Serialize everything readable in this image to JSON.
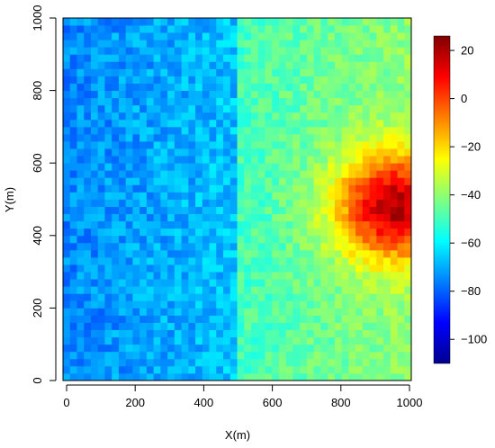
{
  "chart_data": {
    "type": "heatmap",
    "xlabel": "X(m)",
    "ylabel": "Y(m)",
    "xlim": [
      0,
      1000
    ],
    "ylim": [
      0,
      1000
    ],
    "x_ticks": [
      "0",
      "200",
      "400",
      "600",
      "800",
      "1000"
    ],
    "y_ticks": [
      "0",
      "200",
      "400",
      "600",
      "800",
      "1000"
    ],
    "grid_cells": [
      50,
      50
    ],
    "value_range": [
      -110,
      26
    ],
    "colorbar": {
      "ticks": [
        "20",
        "0",
        "−20",
        "−40",
        "−60",
        "−80",
        "−100"
      ],
      "tick_values": [
        20,
        0,
        -20,
        -40,
        -60,
        -80,
        -100
      ],
      "colors": [
        "#00008f",
        "#0000ff",
        "#0080ff",
        "#00ffff",
        "#80ff80",
        "#ffff00",
        "#ff8000",
        "#ff0000",
        "#800000"
      ]
    },
    "regions": [
      {
        "x_range": [
          0,
          500
        ],
        "y_range": [
          0,
          1000
        ],
        "mean_value": -75
      },
      {
        "x_range": [
          500,
          1000
        ],
        "y_range": [
          0,
          1000
        ],
        "mean_value": -42
      },
      {
        "peak": [
          950,
          480
        ],
        "peak_value": 15
      }
    ]
  }
}
